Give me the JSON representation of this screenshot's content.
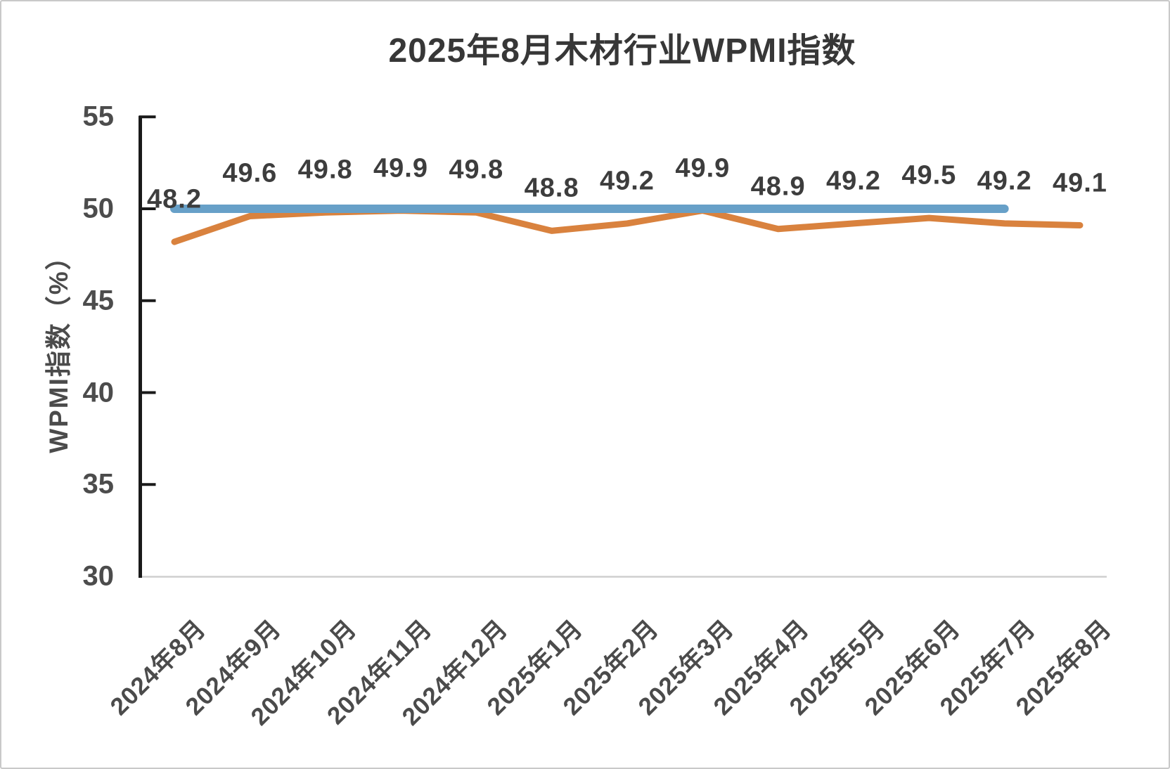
{
  "chart_data": {
    "type": "line",
    "title": "2025年8月木材行业WPMI指数",
    "ylabel": "WPMI指数（%）",
    "xlabel": "",
    "ylim": [
      30,
      55
    ],
    "yticks": [
      30,
      35,
      40,
      45,
      50,
      55
    ],
    "grid": false,
    "legend_position": "none",
    "categories": [
      "2024年8月",
      "2024年9月",
      "2024年10月",
      "2024年11月",
      "2024年12月",
      "2025年1月",
      "2025年2月",
      "2025年3月",
      "2025年4月",
      "2025年5月",
      "2025年6月",
      "2025年7月",
      "2025年8月"
    ],
    "series": [
      {
        "name": "WPMI指数",
        "color": "#d9823e",
        "values": [
          48.2,
          49.6,
          49.8,
          49.9,
          49.8,
          48.8,
          49.2,
          49.9,
          48.9,
          49.2,
          49.5,
          49.2,
          49.1
        ],
        "data_labels": [
          "48.2",
          "49.6",
          "49.8",
          "49.9",
          "49.8",
          "48.8",
          "49.2",
          "49.9",
          "48.9",
          "49.2",
          "49.5",
          "49.2",
          "49.1"
        ]
      }
    ],
    "reference_line": {
      "value": 50,
      "color": "#67a0c8",
      "start_index": 0,
      "end_index": 11
    }
  }
}
